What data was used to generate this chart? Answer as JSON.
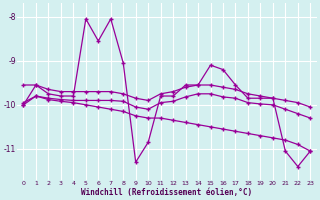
{
  "xlabel": "Windchill (Refroidissement éolien,°C)",
  "line_color": "#990099",
  "background_color": "#d4f0f0",
  "grid_color": "#ffffff",
  "x": [
    0,
    1,
    2,
    3,
    4,
    5,
    6,
    7,
    8,
    9,
    10,
    11,
    12,
    13,
    14,
    15,
    16,
    17,
    18,
    19,
    20,
    21,
    22,
    23
  ],
  "line1": [
    -10.0,
    -9.55,
    -9.75,
    -9.8,
    -9.8,
    -8.05,
    -8.55,
    -8.05,
    -9.05,
    -11.3,
    -10.85,
    -9.8,
    -9.8,
    -9.55,
    -9.55,
    -9.1,
    -9.2,
    -9.55,
    -9.85,
    -9.85,
    -9.85,
    -11.05,
    -11.4,
    -11.05
  ],
  "line2": [
    -9.55,
    -9.55,
    -9.65,
    -9.7,
    -9.7,
    -9.7,
    -9.7,
    -9.7,
    -9.75,
    -9.85,
    -9.9,
    -9.75,
    -9.7,
    -9.6,
    -9.55,
    -9.55,
    -9.6,
    -9.65,
    -9.75,
    -9.8,
    -9.85,
    -9.9,
    -9.95,
    -10.05
  ],
  "line3": [
    -9.95,
    -9.8,
    -9.85,
    -9.88,
    -9.9,
    -9.9,
    -9.9,
    -9.9,
    -9.92,
    -10.05,
    -10.1,
    -9.95,
    -9.92,
    -9.82,
    -9.75,
    -9.75,
    -9.82,
    -9.85,
    -9.95,
    -9.98,
    -10.0,
    -10.1,
    -10.2,
    -10.3
  ],
  "line4": [
    -10.0,
    -9.8,
    -9.88,
    -9.92,
    -9.95,
    -10.0,
    -10.05,
    -10.1,
    -10.15,
    -10.25,
    -10.3,
    -10.3,
    -10.35,
    -10.4,
    -10.45,
    -10.5,
    -10.55,
    -10.6,
    -10.65,
    -10.7,
    -10.75,
    -10.8,
    -10.9,
    -11.05
  ],
  "ylim": [
    -11.7,
    -7.7
  ],
  "xlim": [
    -0.5,
    23.5
  ],
  "yticks": [
    -8,
    -9,
    -10,
    -11
  ],
  "xticks": [
    0,
    1,
    2,
    3,
    4,
    5,
    6,
    7,
    8,
    9,
    10,
    11,
    12,
    13,
    14,
    15,
    16,
    17,
    18,
    19,
    20,
    21,
    22,
    23
  ]
}
